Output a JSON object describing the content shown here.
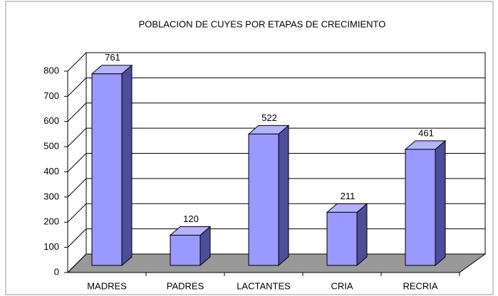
{
  "chart_data": {
    "type": "bar3d",
    "title": "POBLACION DE CUYES POR ETAPAS DE CRECIMIENTO",
    "categories": [
      "MADRES",
      "PADRES",
      "LACTANTES",
      "CRIA",
      "RECRIA"
    ],
    "values": [
      761,
      120,
      522,
      211,
      461
    ],
    "color": "#9999ff",
    "ylim": [
      0,
      800
    ],
    "yticks": [
      0,
      100,
      200,
      300,
      400,
      500,
      600,
      700,
      800
    ],
    "grid": true
  }
}
